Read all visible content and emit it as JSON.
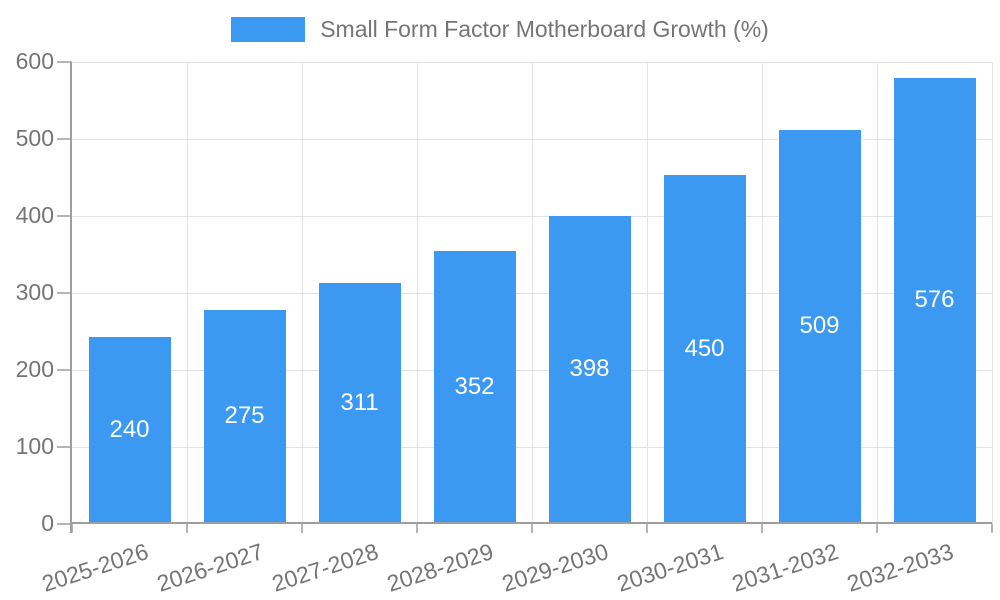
{
  "legend": {
    "label": "Small Form Factor Motherboard Growth (%)"
  },
  "chart_data": {
    "type": "bar",
    "title": "Small Form Factor Motherboard Growth (%)",
    "categories": [
      "2025-2026",
      "2026-2027",
      "2027-2028",
      "2028-2029",
      "2029-2030",
      "2030-2031",
      "2031-2032",
      "2032-2033"
    ],
    "values": [
      240,
      275,
      311,
      352,
      398,
      450,
      509,
      576
    ],
    "data_labels": [
      "240",
      "275",
      "311",
      "352",
      "398",
      "450",
      "509",
      "576"
    ],
    "xlabel": "",
    "ylabel": "",
    "ylim": [
      0,
      600
    ],
    "yticks": [
      0,
      100,
      200,
      300,
      400,
      500,
      600
    ],
    "ytick_labels": [
      "0",
      "100",
      "200",
      "300",
      "400",
      "500",
      "600"
    ],
    "grid": "on",
    "legend_position": "top-center",
    "x_tick_rotation_deg": -18
  },
  "colors": {
    "bar": "#3B99F1",
    "grid": "#E3E3E3",
    "axis": "#9E9E9E",
    "tick": "#B5B5B5",
    "text": "#757575",
    "bar_label": "#FFFFFF",
    "background": "#FFFFFF"
  }
}
